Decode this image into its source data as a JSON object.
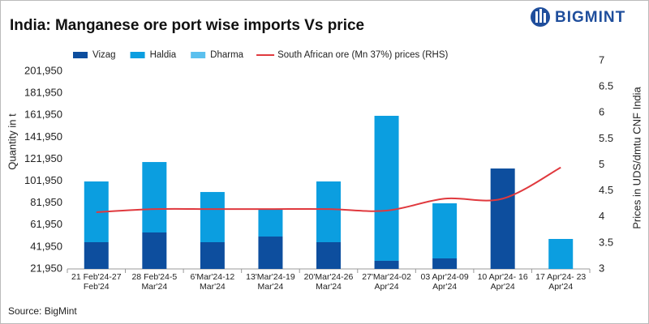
{
  "brand": "BIGMINT",
  "chart_data": {
    "type": "stacked-bar-line",
    "title": "India: Manganese ore port wise imports Vs price",
    "source": "Source: BigMint",
    "ylabel": "Quantity in t",
    "y2label": "Prices in UDS/dmtu CNF India",
    "categories": [
      [
        "21 Feb'24-27",
        "Feb'24"
      ],
      [
        "28 Feb'24-5",
        "Mar'24"
      ],
      [
        "6'Mar'24-12",
        "Mar'24"
      ],
      [
        "13'Mar'24-19",
        "Mar'24"
      ],
      [
        "20'Mar'24-26",
        "Mar'24"
      ],
      [
        "27'Mar'24-02",
        "Apr'24"
      ],
      [
        "03 Apr'24-09",
        "Apr'24"
      ],
      [
        "10 Apr'24- 16",
        "Apr'24"
      ],
      [
        "17 Apr'24- 23",
        "Apr'24"
      ]
    ],
    "series": [
      {
        "name": "Vizag",
        "color": "#0d4e9e",
        "values": [
          46300,
          55150,
          46300,
          51450,
          46300,
          29350,
          31550,
          113400,
          0
        ]
      },
      {
        "name": "Haldia",
        "color": "#0b9ee0",
        "values": [
          55300,
          64150,
          45700,
          24350,
          55300,
          132050,
          50150,
          0,
          49250
        ]
      },
      {
        "name": "Dharma",
        "color": "#5bc0ee",
        "values": [
          0,
          0,
          0,
          0,
          0,
          0,
          0,
          0,
          0
        ]
      },
      {
        "name": "South African ore (Mn 37%) prices (RHS)",
        "color": "#e0393e",
        "axis": "y2",
        "values": [
          4.09,
          4.15,
          4.15,
          4.15,
          4.15,
          4.12,
          4.35,
          4.35,
          4.95
        ]
      }
    ],
    "ylim": [
      21950,
      201950
    ],
    "yticks": [
      {
        "value": 21950,
        "label": "21,950"
      },
      {
        "value": 41950,
        "label": "41,950"
      },
      {
        "value": 61950,
        "label": "61,950"
      },
      {
        "value": 81950,
        "label": "81,950"
      },
      {
        "value": 101950,
        "label": "101,950"
      },
      {
        "value": 121950,
        "label": "121,950"
      },
      {
        "value": 141950,
        "label": "141,950"
      },
      {
        "value": 161950,
        "label": "161,950"
      },
      {
        "value": 181950,
        "label": "181,950"
      },
      {
        "value": 201950,
        "label": "201,950"
      }
    ],
    "y2lim": [
      3,
      7
    ],
    "y2ticks": [
      3,
      3.5,
      4,
      4.5,
      5,
      5.5,
      6,
      6.5,
      7
    ]
  }
}
